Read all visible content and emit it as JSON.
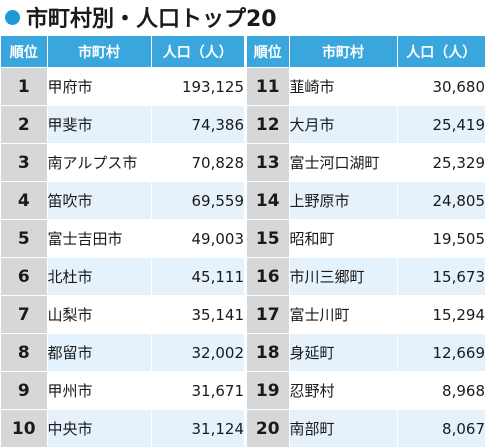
{
  "title": "市町村別・人口トップ20",
  "colors": {
    "accent": "#1e9ad6",
    "header_bg": "#3aa6de",
    "rank_col_bg": "#d6d7d9",
    "row_even": "#ffffff",
    "row_odd": "#e6f2fb"
  },
  "headers": {
    "rank": "順位",
    "city": "市町村",
    "population": "人口（人）"
  },
  "left_rows": [
    {
      "rank": "1",
      "city": "甲府市",
      "population": "193,125"
    },
    {
      "rank": "2",
      "city": "甲斐市",
      "population": "74,386"
    },
    {
      "rank": "3",
      "city": "南アルプス市",
      "population": "70,828"
    },
    {
      "rank": "4",
      "city": "笛吹市",
      "population": "69,559"
    },
    {
      "rank": "5",
      "city": "富士吉田市",
      "population": "49,003"
    },
    {
      "rank": "6",
      "city": "北杜市",
      "population": "45,111"
    },
    {
      "rank": "7",
      "city": "山梨市",
      "population": "35,141"
    },
    {
      "rank": "8",
      "city": "都留市",
      "population": "32,002"
    },
    {
      "rank": "9",
      "city": "甲州市",
      "population": "31,671"
    },
    {
      "rank": "10",
      "city": "中央市",
      "population": "31,124"
    }
  ],
  "right_rows": [
    {
      "rank": "11",
      "city": "韮崎市",
      "population": "30,680"
    },
    {
      "rank": "12",
      "city": "大月市",
      "population": "25,419"
    },
    {
      "rank": "13",
      "city": "富士河口湖町",
      "population": "25,329"
    },
    {
      "rank": "14",
      "city": "上野原市",
      "population": "24,805"
    },
    {
      "rank": "15",
      "city": "昭和町",
      "population": "19,505"
    },
    {
      "rank": "16",
      "city": "市川三郷町",
      "population": "15,673"
    },
    {
      "rank": "17",
      "city": "富士川町",
      "population": "15,294"
    },
    {
      "rank": "18",
      "city": "身延町",
      "population": "12,669"
    },
    {
      "rank": "19",
      "city": "忍野村",
      "population": "8,968"
    },
    {
      "rank": "20",
      "city": "南部町",
      "population": "8,067"
    }
  ]
}
